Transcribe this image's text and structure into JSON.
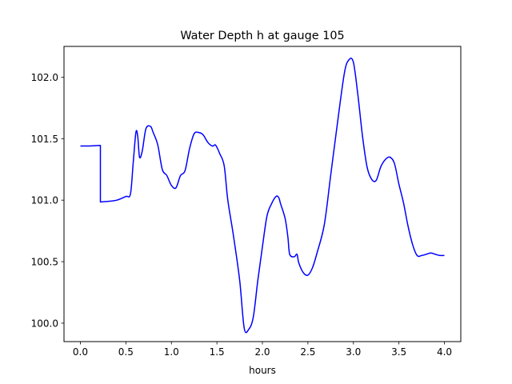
{
  "chart_data": {
    "type": "line",
    "title": "Water Depth h at gauge 105",
    "xlabel": "hours",
    "ylabel": "",
    "xlim": [
      -0.18,
      4.18
    ],
    "ylim": [
      99.85,
      102.25
    ],
    "xticks": [
      0.0,
      0.5,
      1.0,
      1.5,
      2.0,
      2.5,
      3.0,
      3.5,
      4.0
    ],
    "xtick_labels": [
      "0.0",
      "0.5",
      "1.0",
      "1.5",
      "2.0",
      "2.5",
      "3.0",
      "3.5",
      "4.0"
    ],
    "yticks": [
      100.0,
      100.5,
      101.0,
      101.5,
      102.0
    ],
    "ytick_labels": [
      "100.0",
      "100.5",
      "101.0",
      "101.5",
      "102.0"
    ],
    "grid": false,
    "series": [
      {
        "color": "#0000ff",
        "x": [
          0.0,
          0.1,
          0.22,
          0.22,
          0.3,
          0.4,
          0.5,
          0.55,
          0.58,
          0.61,
          0.63,
          0.65,
          0.68,
          0.72,
          0.77,
          0.8,
          0.85,
          0.9,
          0.95,
          1.0,
          1.05,
          1.1,
          1.15,
          1.2,
          1.25,
          1.3,
          1.35,
          1.4,
          1.45,
          1.48,
          1.5,
          1.53,
          1.58,
          1.62,
          1.68,
          1.75,
          1.8,
          1.85,
          1.9,
          1.95,
          2.0,
          2.05,
          2.1,
          2.15,
          2.18,
          2.2,
          2.25,
          2.28,
          2.3,
          2.35,
          2.38,
          2.4,
          2.45,
          2.5,
          2.55,
          2.6,
          2.68,
          2.75,
          2.82,
          2.9,
          2.95,
          3.0,
          3.05,
          3.1,
          3.15,
          3.2,
          3.25,
          3.3,
          3.35,
          3.4,
          3.45,
          3.5,
          3.55,
          3.6,
          3.65,
          3.7,
          3.75,
          3.8,
          3.85,
          3.9,
          3.95,
          4.0
        ],
        "y": [
          101.44,
          101.44,
          101.445,
          100.985,
          100.99,
          101.0,
          101.03,
          101.05,
          101.3,
          101.55,
          101.52,
          101.35,
          101.4,
          101.58,
          101.6,
          101.55,
          101.45,
          101.25,
          101.2,
          101.12,
          101.1,
          101.2,
          101.24,
          101.42,
          101.54,
          101.55,
          101.53,
          101.47,
          101.44,
          101.45,
          101.43,
          101.38,
          101.28,
          101.0,
          100.72,
          100.35,
          99.96,
          99.95,
          100.05,
          100.35,
          100.62,
          100.87,
          100.97,
          101.03,
          101.02,
          100.97,
          100.85,
          100.7,
          100.56,
          100.54,
          100.56,
          100.49,
          100.41,
          100.39,
          100.45,
          100.57,
          100.8,
          101.2,
          101.6,
          102.03,
          102.14,
          102.12,
          101.85,
          101.52,
          101.27,
          101.17,
          101.16,
          101.27,
          101.33,
          101.35,
          101.3,
          101.13,
          100.98,
          100.79,
          100.64,
          100.55,
          100.55,
          100.56,
          100.57,
          100.56,
          100.55,
          100.55
        ]
      }
    ]
  }
}
